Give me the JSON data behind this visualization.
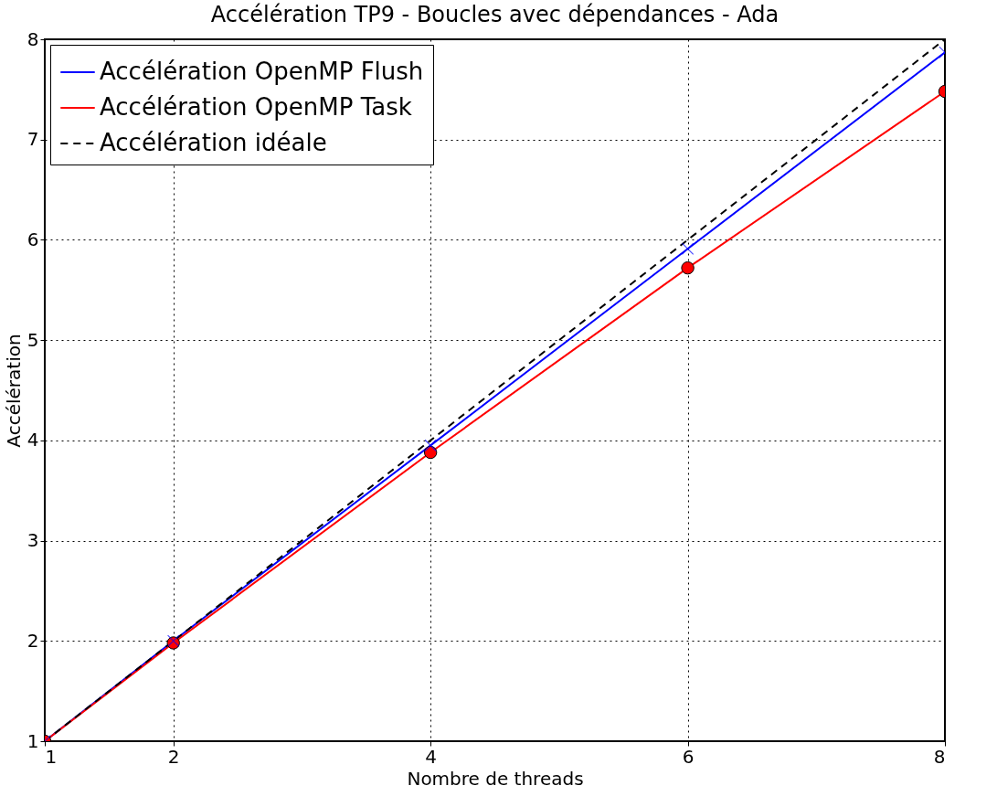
{
  "chart_data": {
    "type": "line",
    "title": "Accélération TP9 - Boucles avec dépendances - Ada",
    "xlabel": "Nombre de threads",
    "ylabel": "Accélération",
    "x": [
      1,
      2,
      4,
      6,
      8
    ],
    "series": [
      {
        "name": "Accélération OpenMP Flush",
        "color": "#0000ff",
        "values": [
          1,
          2.0,
          3.95,
          5.91,
          7.87
        ],
        "marker": "cross",
        "line_style": "solid"
      },
      {
        "name": "Accélération OpenMP Task",
        "color": "#ff0000",
        "values": [
          1,
          1.98,
          3.88,
          5.72,
          7.48
        ],
        "marker": "circle",
        "line_style": "solid"
      },
      {
        "name": "Accélération idéale",
        "color": "#000000",
        "values": [
          1,
          2,
          4,
          6,
          8
        ],
        "marker": "none",
        "line_style": "dashed"
      }
    ],
    "xlim": [
      1,
      8
    ],
    "xticks": [
      1,
      2,
      4,
      6,
      8
    ],
    "ylim": [
      1,
      8
    ],
    "yticks": [
      1,
      2,
      3,
      4,
      5,
      6,
      7,
      8
    ],
    "grid": true,
    "legend": "top left"
  }
}
